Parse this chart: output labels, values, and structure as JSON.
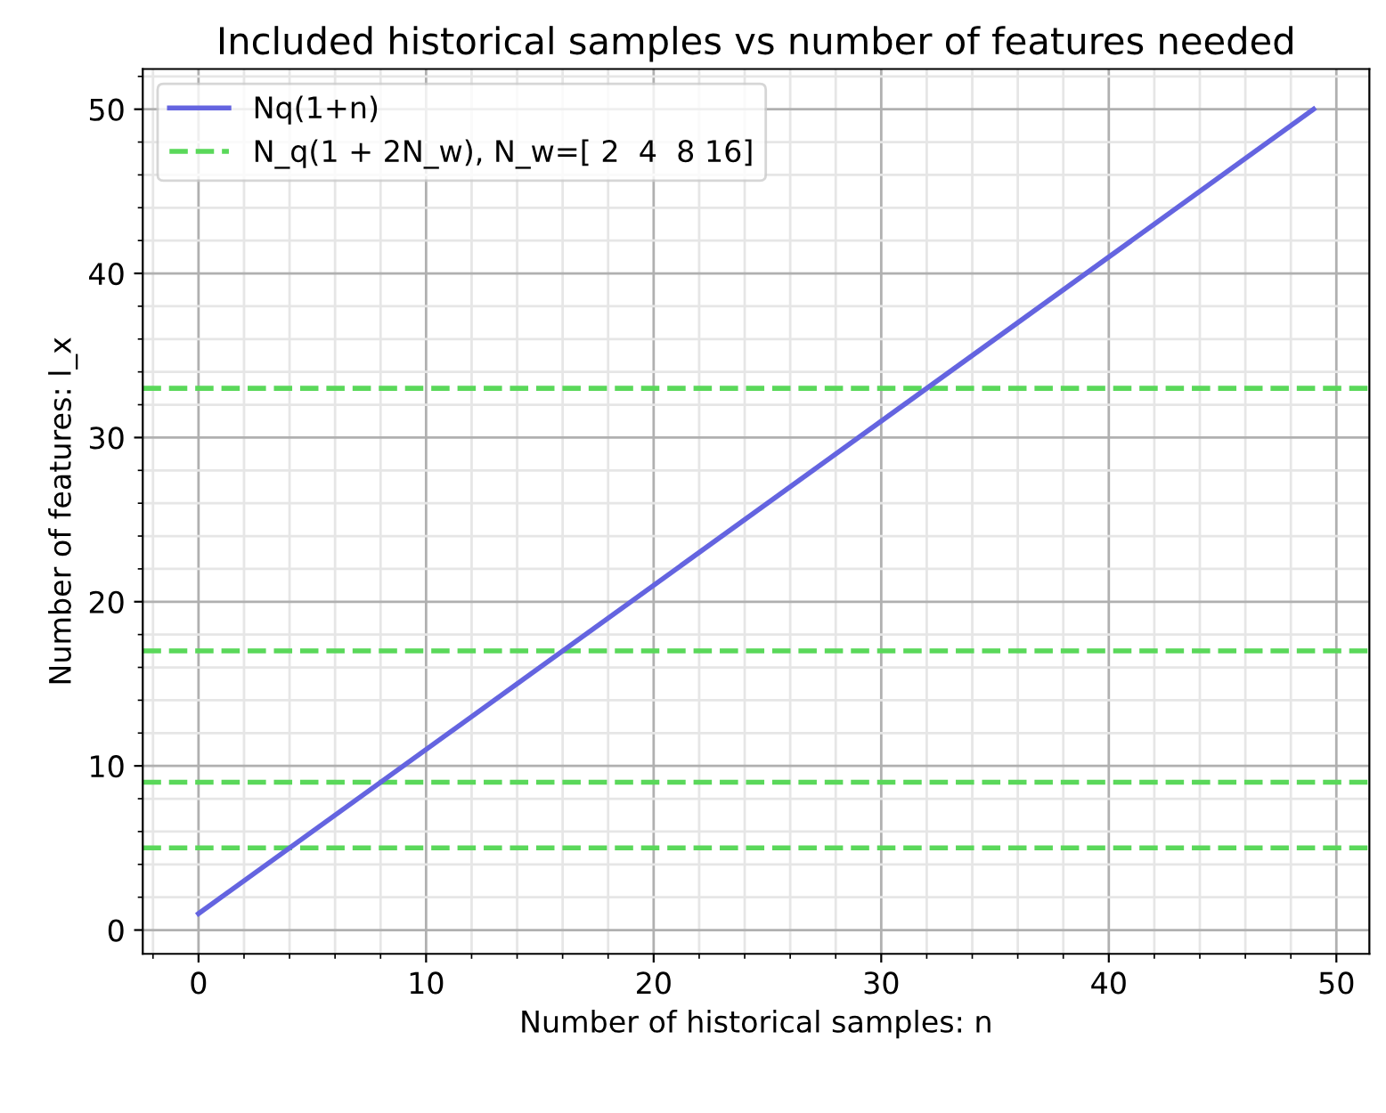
{
  "chart_data": {
    "type": "line",
    "title": "Included historical samples vs number of features needed",
    "xlabel": "Number of historical samples: n",
    "ylabel": "Number of features: l_x",
    "series": [
      {
        "name": "Nq(1+n)",
        "color": "#6464e0",
        "x": [
          0,
          49
        ],
        "values": [
          1,
          50
        ],
        "line_style": "solid"
      }
    ],
    "ref_lines": [
      {
        "axis": "y",
        "value": 5,
        "label": "N_q(1 + 2N_w), N_w=[ 2  4  8 16]",
        "color": "#5ad85a",
        "line_style": "dashed"
      },
      {
        "axis": "y",
        "value": 9,
        "color": "#5ad85a",
        "line_style": "dashed"
      },
      {
        "axis": "y",
        "value": 17,
        "color": "#5ad85a",
        "line_style": "dashed"
      },
      {
        "axis": "y",
        "value": 33,
        "color": "#5ad85a",
        "line_style": "dashed"
      }
    ],
    "xlim": [
      -2.45,
      51.45
    ],
    "ylim": [
      -1.45,
      52.45
    ],
    "xticks": [
      0,
      10,
      20,
      30,
      40,
      50
    ],
    "yticks": [
      0,
      10,
      20,
      30,
      40,
      50
    ],
    "grid": true,
    "legend": "top left",
    "marker": "none"
  }
}
